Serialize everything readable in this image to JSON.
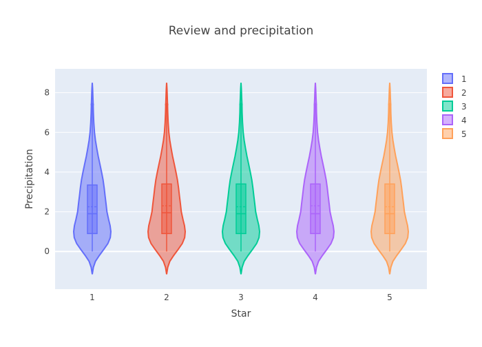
{
  "chart_data": {
    "type": "violin",
    "title": "Review and precipitation",
    "xlabel": "Star",
    "ylabel": "Precipitation",
    "ylim": [
      -1.9,
      9.2
    ],
    "yticks": [
      0,
      2,
      4,
      6,
      8
    ],
    "grid": true,
    "legend_position": "top-right",
    "box_inside": true,
    "mean_line": true,
    "categories": [
      "1",
      "2",
      "3",
      "4",
      "5"
    ],
    "series": [
      {
        "name": "1",
        "color": "#636efa",
        "min": 0,
        "q1": 0.9,
        "median": 1.9,
        "mean": 2.25,
        "q3": 3.35,
        "upper_fence": 7.4,
        "max": 8.5,
        "kde_min": -1.15
      },
      {
        "name": "2",
        "color": "#EF553B",
        "min": 0,
        "q1": 0.9,
        "median": 1.95,
        "mean": 2.3,
        "q3": 3.4,
        "upper_fence": 7.4,
        "max": 8.5,
        "kde_min": -1.15
      },
      {
        "name": "3",
        "color": "#00cc96",
        "min": 0,
        "q1": 0.9,
        "median": 1.9,
        "mean": 2.25,
        "q3": 3.4,
        "upper_fence": 7.4,
        "max": 8.5,
        "kde_min": -1.15
      },
      {
        "name": "4",
        "color": "#ab63fa",
        "min": 0,
        "q1": 0.9,
        "median": 1.9,
        "mean": 2.3,
        "q3": 3.4,
        "upper_fence": 7.4,
        "max": 8.5,
        "kde_min": -1.15
      },
      {
        "name": "5",
        "color": "#FFA15A",
        "min": 0,
        "q1": 0.9,
        "median": 1.9,
        "mean": 2.25,
        "q3": 3.4,
        "upper_fence": 7.4,
        "max": 8.5,
        "kde_min": -1.15
      }
    ],
    "density_profile": [
      [
        -1.15,
        0.0
      ],
      [
        -0.8,
        0.06
      ],
      [
        -0.5,
        0.17
      ],
      [
        -0.2,
        0.38
      ],
      [
        0.1,
        0.62
      ],
      [
        0.4,
        0.84
      ],
      [
        0.7,
        0.97
      ],
      [
        1.0,
        1.0
      ],
      [
        1.3,
        0.96
      ],
      [
        1.6,
        0.88
      ],
      [
        2.0,
        0.79
      ],
      [
        2.4,
        0.74
      ],
      [
        2.8,
        0.69
      ],
      [
        3.2,
        0.64
      ],
      [
        3.6,
        0.58
      ],
      [
        4.0,
        0.5
      ],
      [
        4.4,
        0.41
      ],
      [
        4.8,
        0.32
      ],
      [
        5.2,
        0.24
      ],
      [
        5.6,
        0.17
      ],
      [
        6.0,
        0.12
      ],
      [
        6.5,
        0.08
      ],
      [
        7.0,
        0.06
      ],
      [
        7.4,
        0.05
      ],
      [
        7.8,
        0.035
      ],
      [
        8.2,
        0.02
      ],
      [
        8.5,
        0.0
      ]
    ]
  }
}
